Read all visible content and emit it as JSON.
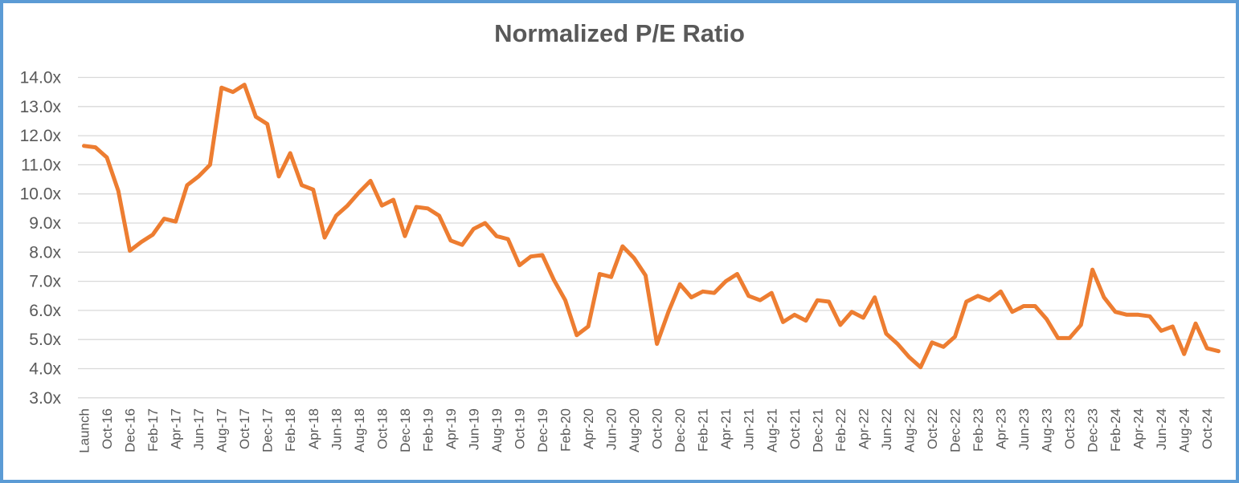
{
  "chart_data": {
    "type": "line",
    "title": "Normalized P/E Ratio",
    "xlabel": "",
    "ylabel": "",
    "ylim": [
      3.0,
      14.0
    ],
    "y_tick_step": 1.0,
    "y_tick_labels": [
      "14.0x",
      "13.0x",
      "12.0x",
      "11.0x",
      "10.0x",
      "9.0x",
      "8.0x",
      "7.0x",
      "6.0x",
      "5.0x",
      "4.0x",
      "3.0x"
    ],
    "grid": "horizontal",
    "legend": "none",
    "x_tick_labels": [
      "Launch",
      "Oct-16",
      "Dec-16",
      "Feb-17",
      "Apr-17",
      "Jun-17",
      "Aug-17",
      "Oct-17",
      "Dec-17",
      "Feb-18",
      "Apr-18",
      "Jun-18",
      "Aug-18",
      "Oct-18",
      "Dec-18",
      "Feb-19",
      "Apr-19",
      "Jun-19",
      "Aug-19",
      "Oct-19",
      "Dec-19",
      "Feb-20",
      "Apr-20",
      "Jun-20",
      "Aug-20",
      "Oct-20",
      "Dec-20",
      "Feb-21",
      "Apr-21",
      "Jun-21",
      "Aug-21",
      "Oct-21",
      "Dec-21",
      "Feb-22",
      "Apr-22",
      "Jun-22",
      "Aug-22",
      "Oct-22",
      "Dec-22",
      "Feb-23",
      "Apr-23",
      "Jun-23",
      "Aug-23",
      "Oct-23",
      "Dec-23",
      "Feb-24",
      "Apr-24",
      "Jun-24",
      "Aug-24",
      "Oct-24"
    ],
    "points_per_x_label": 2,
    "series": [
      {
        "name": "Normalized P/E Ratio",
        "color": "#ED7D31",
        "values": [
          11.65,
          11.6,
          11.25,
          10.1,
          8.05,
          8.35,
          8.6,
          9.15,
          9.05,
          10.3,
          10.6,
          11.0,
          13.65,
          13.5,
          13.75,
          12.65,
          12.4,
          10.6,
          11.4,
          10.3,
          10.15,
          8.5,
          9.25,
          9.6,
          10.05,
          10.45,
          9.6,
          9.8,
          8.55,
          9.55,
          9.5,
          9.25,
          8.4,
          8.25,
          8.8,
          9.0,
          8.55,
          8.45,
          7.55,
          7.85,
          7.9,
          7.05,
          6.35,
          5.15,
          5.45,
          7.25,
          7.15,
          8.2,
          7.8,
          7.2,
          4.85,
          5.95,
          6.9,
          6.45,
          6.65,
          6.6,
          7.0,
          7.25,
          6.5,
          6.35,
          6.6,
          5.6,
          5.85,
          5.65,
          6.35,
          6.3,
          5.5,
          5.95,
          5.75,
          6.45,
          5.2,
          4.85,
          4.4,
          4.05,
          4.9,
          4.75,
          5.1,
          6.3,
          6.5,
          6.35,
          6.65,
          5.95,
          6.15,
          6.15,
          5.7,
          5.05,
          5.05,
          5.5,
          7.4,
          6.45,
          5.95,
          5.85,
          5.85,
          5.8,
          5.3,
          5.45,
          4.5,
          5.55,
          4.7,
          4.6
        ]
      }
    ]
  },
  "colors": {
    "frame_border": "#5B9BD5",
    "background": "#FFFFFF",
    "gridline": "#D9D9D9",
    "axis_text": "#595959",
    "title_text": "#595959",
    "line": "#ED7D31"
  }
}
